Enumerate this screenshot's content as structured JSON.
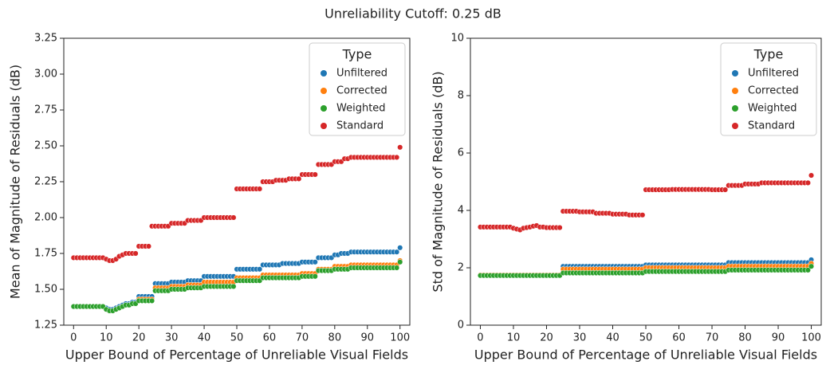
{
  "title": "Unreliability Cutoff: 0.25 dB",
  "chart_data": [
    {
      "type": "scatter",
      "xlabel": "Upper Bound of Percentage of Unreliable Visual Fields",
      "ylabel": "Mean of Magnitude of Residuals (dB)",
      "xlim": [
        -3,
        103
      ],
      "ylim": [
        1.25,
        3.25
      ],
      "xticks": [
        0,
        10,
        20,
        30,
        40,
        50,
        60,
        70,
        80,
        90,
        100
      ],
      "yticks": [
        1.25,
        {
          "value": 1.5,
          "label": "1.50"
        },
        1.75,
        {
          "value": 2,
          "label": "2.00"
        },
        2.25,
        {
          "value": 2.5,
          "label": "2.50"
        },
        2.75,
        {
          "value": 3,
          "label": "3.00"
        },
        3.25
      ],
      "legend_title": "Type",
      "legend": "upper right",
      "x": [
        0,
        1,
        2,
        3,
        4,
        5,
        6,
        7,
        8,
        9,
        10,
        11,
        12,
        13,
        14,
        15,
        16,
        17,
        18,
        19,
        20,
        21,
        22,
        23,
        24,
        25,
        26,
        27,
        28,
        29,
        30,
        31,
        32,
        33,
        34,
        35,
        36,
        37,
        38,
        39,
        40,
        41,
        42,
        43,
        44,
        45,
        46,
        47,
        48,
        49,
        50,
        51,
        52,
        53,
        54,
        55,
        56,
        57,
        58,
        59,
        60,
        61,
        62,
        63,
        64,
        65,
        66,
        67,
        68,
        69,
        70,
        71,
        72,
        73,
        74,
        75,
        76,
        77,
        78,
        79,
        80,
        81,
        82,
        83,
        84,
        85,
        86,
        87,
        88,
        89,
        90,
        91,
        92,
        93,
        94,
        95,
        96,
        97,
        98,
        99,
        100
      ],
      "series": [
        {
          "name": "Unfiltered",
          "color": "#1f77b4",
          "values": [
            1.38,
            1.38,
            1.38,
            1.38,
            1.38,
            1.38,
            1.38,
            1.38,
            1.38,
            1.38,
            1.37,
            1.36,
            1.36,
            1.37,
            1.38,
            1.39,
            1.4,
            1.4,
            1.41,
            1.41,
            1.45,
            1.45,
            1.45,
            1.45,
            1.45,
            1.54,
            1.54,
            1.54,
            1.54,
            1.54,
            1.55,
            1.55,
            1.55,
            1.55,
            1.55,
            1.56,
            1.56,
            1.56,
            1.56,
            1.56,
            1.59,
            1.59,
            1.59,
            1.59,
            1.59,
            1.59,
            1.59,
            1.59,
            1.59,
            1.59,
            1.64,
            1.64,
            1.64,
            1.64,
            1.64,
            1.64,
            1.64,
            1.64,
            1.67,
            1.67,
            1.67,
            1.67,
            1.67,
            1.67,
            1.68,
            1.68,
            1.68,
            1.68,
            1.68,
            1.68,
            1.69,
            1.69,
            1.69,
            1.69,
            1.69,
            1.72,
            1.72,
            1.72,
            1.72,
            1.72,
            1.74,
            1.74,
            1.75,
            1.75,
            1.75,
            1.76,
            1.76,
            1.76,
            1.76,
            1.76,
            1.76,
            1.76,
            1.76,
            1.76,
            1.76,
            1.76,
            1.76,
            1.76,
            1.76,
            1.76,
            1.79
          ]
        },
        {
          "name": "Corrected",
          "color": "#ff7f0e",
          "values": [
            1.38,
            1.38,
            1.38,
            1.38,
            1.38,
            1.38,
            1.38,
            1.38,
            1.38,
            1.38,
            1.36,
            1.35,
            1.35,
            1.36,
            1.37,
            1.38,
            1.39,
            1.39,
            1.4,
            1.4,
            1.43,
            1.43,
            1.43,
            1.43,
            1.43,
            1.51,
            1.51,
            1.51,
            1.51,
            1.51,
            1.52,
            1.52,
            1.52,
            1.52,
            1.52,
            1.53,
            1.53,
            1.53,
            1.53,
            1.53,
            1.55,
            1.55,
            1.55,
            1.55,
            1.55,
            1.55,
            1.55,
            1.55,
            1.55,
            1.55,
            1.58,
            1.58,
            1.58,
            1.58,
            1.58,
            1.58,
            1.58,
            1.58,
            1.6,
            1.6,
            1.6,
            1.6,
            1.6,
            1.6,
            1.6,
            1.6,
            1.6,
            1.6,
            1.6,
            1.6,
            1.61,
            1.61,
            1.61,
            1.61,
            1.61,
            1.64,
            1.64,
            1.64,
            1.64,
            1.64,
            1.66,
            1.66,
            1.66,
            1.66,
            1.66,
            1.67,
            1.67,
            1.67,
            1.67,
            1.67,
            1.67,
            1.67,
            1.67,
            1.67,
            1.67,
            1.67,
            1.67,
            1.67,
            1.67,
            1.67,
            1.7
          ]
        },
        {
          "name": "Weighted",
          "color": "#2ca02c",
          "values": [
            1.38,
            1.38,
            1.38,
            1.38,
            1.38,
            1.38,
            1.38,
            1.38,
            1.38,
            1.38,
            1.36,
            1.35,
            1.35,
            1.36,
            1.37,
            1.38,
            1.39,
            1.39,
            1.4,
            1.4,
            1.42,
            1.42,
            1.42,
            1.42,
            1.42,
            1.49,
            1.49,
            1.49,
            1.49,
            1.49,
            1.5,
            1.5,
            1.5,
            1.5,
            1.5,
            1.51,
            1.51,
            1.51,
            1.51,
            1.51,
            1.52,
            1.52,
            1.52,
            1.52,
            1.52,
            1.52,
            1.52,
            1.52,
            1.52,
            1.52,
            1.56,
            1.56,
            1.56,
            1.56,
            1.56,
            1.56,
            1.56,
            1.56,
            1.58,
            1.58,
            1.58,
            1.58,
            1.58,
            1.58,
            1.58,
            1.58,
            1.58,
            1.58,
            1.58,
            1.58,
            1.59,
            1.59,
            1.59,
            1.59,
            1.59,
            1.63,
            1.63,
            1.63,
            1.63,
            1.63,
            1.64,
            1.64,
            1.64,
            1.64,
            1.64,
            1.65,
            1.65,
            1.65,
            1.65,
            1.65,
            1.65,
            1.65,
            1.65,
            1.65,
            1.65,
            1.65,
            1.65,
            1.65,
            1.65,
            1.65,
            1.69
          ]
        },
        {
          "name": "Standard",
          "color": "#d62728",
          "values": [
            1.72,
            1.72,
            1.72,
            1.72,
            1.72,
            1.72,
            1.72,
            1.72,
            1.72,
            1.72,
            1.71,
            1.7,
            1.7,
            1.71,
            1.73,
            1.74,
            1.75,
            1.75,
            1.75,
            1.75,
            1.8,
            1.8,
            1.8,
            1.8,
            1.94,
            1.94,
            1.94,
            1.94,
            1.94,
            1.94,
            1.96,
            1.96,
            1.96,
            1.96,
            1.96,
            1.98,
            1.98,
            1.98,
            1.98,
            1.98,
            2.0,
            2.0,
            2.0,
            2.0,
            2.0,
            2.0,
            2.0,
            2.0,
            2.0,
            2.0,
            2.2,
            2.2,
            2.2,
            2.2,
            2.2,
            2.2,
            2.2,
            2.2,
            2.25,
            2.25,
            2.25,
            2.25,
            2.26,
            2.26,
            2.26,
            2.26,
            2.27,
            2.27,
            2.27,
            2.27,
            2.3,
            2.3,
            2.3,
            2.3,
            2.3,
            2.37,
            2.37,
            2.37,
            2.37,
            2.37,
            2.39,
            2.39,
            2.39,
            2.41,
            2.41,
            2.42,
            2.42,
            2.42,
            2.42,
            2.42,
            2.42,
            2.42,
            2.42,
            2.42,
            2.42,
            2.42,
            2.42,
            2.42,
            2.42,
            2.42,
            2.49
          ]
        }
      ]
    },
    {
      "type": "scatter",
      "xlabel": "Upper Bound of Percentage of Unreliable Visual Fields",
      "ylabel": "Std of Magnitude of Residuals (dB)",
      "xlim": [
        -3,
        103
      ],
      "ylim": [
        0,
        10
      ],
      "xticks": [
        0,
        10,
        20,
        30,
        40,
        50,
        60,
        70,
        80,
        90,
        100
      ],
      "yticks": [
        0,
        2,
        4,
        6,
        8,
        10
      ],
      "legend_title": "Type",
      "legend": "upper right",
      "x": [
        0,
        1,
        2,
        3,
        4,
        5,
        6,
        7,
        8,
        9,
        10,
        11,
        12,
        13,
        14,
        15,
        16,
        17,
        18,
        19,
        20,
        21,
        22,
        23,
        24,
        25,
        26,
        27,
        28,
        29,
        30,
        31,
        32,
        33,
        34,
        35,
        36,
        37,
        38,
        39,
        40,
        41,
        42,
        43,
        44,
        45,
        46,
        47,
        48,
        49,
        50,
        51,
        52,
        53,
        54,
        55,
        56,
        57,
        58,
        59,
        60,
        61,
        62,
        63,
        64,
        65,
        66,
        67,
        68,
        69,
        70,
        71,
        72,
        73,
        74,
        75,
        76,
        77,
        78,
        79,
        80,
        81,
        82,
        83,
        84,
        85,
        86,
        87,
        88,
        89,
        90,
        91,
        92,
        93,
        94,
        95,
        96,
        97,
        98,
        99,
        100
      ],
      "series": [
        {
          "name": "Unfiltered",
          "color": "#1f77b4",
          "values": [
            1.75,
            1.75,
            1.75,
            1.75,
            1.75,
            1.75,
            1.75,
            1.75,
            1.75,
            1.75,
            1.75,
            1.75,
            1.75,
            1.75,
            1.75,
            1.75,
            1.75,
            1.75,
            1.75,
            1.75,
            1.75,
            1.75,
            1.75,
            1.75,
            1.75,
            2.05,
            2.05,
            2.05,
            2.05,
            2.05,
            2.05,
            2.05,
            2.05,
            2.05,
            2.05,
            2.05,
            2.05,
            2.05,
            2.05,
            2.05,
            2.05,
            2.05,
            2.05,
            2.05,
            2.05,
            2.05,
            2.05,
            2.05,
            2.05,
            2.05,
            2.1,
            2.1,
            2.1,
            2.1,
            2.1,
            2.1,
            2.1,
            2.1,
            2.1,
            2.1,
            2.1,
            2.1,
            2.1,
            2.1,
            2.1,
            2.1,
            2.1,
            2.1,
            2.1,
            2.1,
            2.1,
            2.1,
            2.1,
            2.1,
            2.1,
            2.18,
            2.18,
            2.18,
            2.18,
            2.18,
            2.18,
            2.18,
            2.18,
            2.18,
            2.18,
            2.18,
            2.18,
            2.18,
            2.18,
            2.18,
            2.18,
            2.18,
            2.18,
            2.18,
            2.18,
            2.18,
            2.18,
            2.18,
            2.18,
            2.18,
            2.28
          ]
        },
        {
          "name": "Corrected",
          "color": "#ff7f0e",
          "values": [
            1.75,
            1.75,
            1.75,
            1.75,
            1.75,
            1.75,
            1.75,
            1.75,
            1.75,
            1.75,
            1.75,
            1.75,
            1.75,
            1.75,
            1.75,
            1.75,
            1.75,
            1.75,
            1.75,
            1.75,
            1.75,
            1.75,
            1.75,
            1.75,
            1.75,
            1.95,
            1.95,
            1.95,
            1.95,
            1.95,
            1.95,
            1.95,
            1.95,
            1.95,
            1.95,
            1.95,
            1.95,
            1.95,
            1.95,
            1.95,
            1.95,
            1.95,
            1.95,
            1.95,
            1.95,
            1.95,
            1.95,
            1.95,
            1.95,
            1.95,
            2.0,
            2.0,
            2.0,
            2.0,
            2.0,
            2.0,
            2.0,
            2.0,
            2.0,
            2.0,
            2.0,
            2.0,
            2.0,
            2.0,
            2.0,
            2.0,
            2.0,
            2.0,
            2.0,
            2.0,
            2.0,
            2.0,
            2.0,
            2.0,
            2.0,
            2.05,
            2.05,
            2.05,
            2.05,
            2.05,
            2.05,
            2.05,
            2.05,
            2.05,
            2.05,
            2.05,
            2.05,
            2.05,
            2.05,
            2.05,
            2.05,
            2.05,
            2.05,
            2.05,
            2.05,
            2.05,
            2.05,
            2.05,
            2.05,
            2.05,
            2.15
          ]
        },
        {
          "name": "Weighted",
          "color": "#2ca02c",
          "values": [
            1.73,
            1.73,
            1.73,
            1.73,
            1.73,
            1.73,
            1.73,
            1.73,
            1.73,
            1.73,
            1.73,
            1.73,
            1.73,
            1.73,
            1.73,
            1.73,
            1.73,
            1.73,
            1.73,
            1.73,
            1.73,
            1.73,
            1.73,
            1.73,
            1.73,
            1.82,
            1.82,
            1.82,
            1.82,
            1.82,
            1.82,
            1.82,
            1.82,
            1.82,
            1.82,
            1.82,
            1.82,
            1.82,
            1.82,
            1.82,
            1.82,
            1.82,
            1.82,
            1.82,
            1.82,
            1.82,
            1.82,
            1.82,
            1.82,
            1.82,
            1.87,
            1.87,
            1.87,
            1.87,
            1.87,
            1.87,
            1.87,
            1.87,
            1.87,
            1.87,
            1.87,
            1.87,
            1.87,
            1.87,
            1.87,
            1.87,
            1.87,
            1.87,
            1.87,
            1.87,
            1.87,
            1.87,
            1.87,
            1.87,
            1.87,
            1.92,
            1.92,
            1.92,
            1.92,
            1.92,
            1.92,
            1.92,
            1.92,
            1.92,
            1.92,
            1.92,
            1.92,
            1.92,
            1.92,
            1.92,
            1.92,
            1.92,
            1.92,
            1.92,
            1.92,
            1.92,
            1.92,
            1.92,
            1.92,
            1.92,
            2.05
          ]
        },
        {
          "name": "Standard",
          "color": "#d62728",
          "values": [
            3.42,
            3.42,
            3.42,
            3.42,
            3.42,
            3.42,
            3.42,
            3.42,
            3.42,
            3.42,
            3.38,
            3.35,
            3.32,
            3.38,
            3.4,
            3.42,
            3.45,
            3.47,
            3.42,
            3.42,
            3.4,
            3.4,
            3.4,
            3.4,
            3.4,
            3.97,
            3.97,
            3.97,
            3.97,
            3.97,
            3.95,
            3.95,
            3.95,
            3.95,
            3.95,
            3.9,
            3.9,
            3.9,
            3.9,
            3.9,
            3.87,
            3.87,
            3.87,
            3.87,
            3.87,
            3.84,
            3.84,
            3.84,
            3.84,
            3.84,
            4.72,
            4.72,
            4.72,
            4.72,
            4.72,
            4.72,
            4.72,
            4.72,
            4.73,
            4.73,
            4.73,
            4.73,
            4.73,
            4.73,
            4.73,
            4.73,
            4.73,
            4.73,
            4.73,
            4.73,
            4.72,
            4.72,
            4.72,
            4.72,
            4.72,
            4.87,
            4.87,
            4.87,
            4.87,
            4.87,
            4.92,
            4.92,
            4.92,
            4.92,
            4.92,
            4.96,
            4.96,
            4.96,
            4.96,
            4.96,
            4.96,
            4.96,
            4.96,
            4.96,
            4.96,
            4.96,
            4.96,
            4.96,
            4.96,
            4.96,
            5.22
          ]
        }
      ]
    }
  ]
}
